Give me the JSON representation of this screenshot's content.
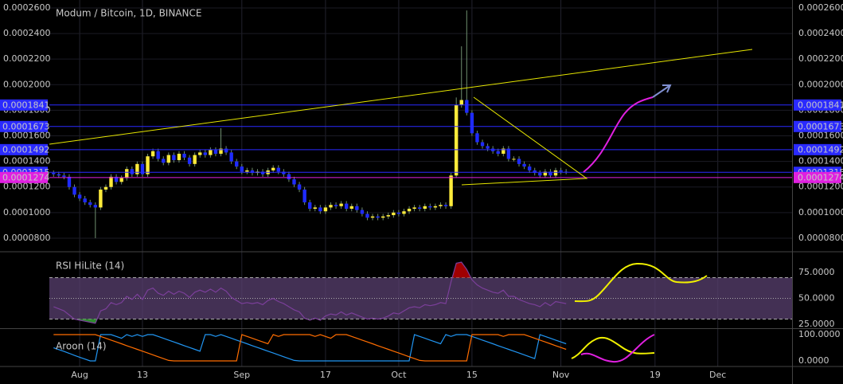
{
  "chart_data": [
    {
      "type": "candlestick",
      "title": "Modum / Bitcoin, 1D, BINANCE",
      "x": [
        -5,
        -4,
        -3,
        -2,
        -1,
        0,
        1,
        2,
        3,
        4,
        5,
        6,
        7,
        8,
        9,
        10,
        11,
        12,
        13,
        14,
        15,
        16,
        17,
        18,
        19,
        20,
        21,
        22,
        23,
        24,
        25,
        26,
        27,
        28,
        29,
        30,
        31,
        32,
        33,
        34,
        35,
        36,
        37,
        38,
        39,
        40,
        41,
        42,
        43,
        44,
        45,
        46,
        47,
        48,
        49,
        50,
        51,
        52,
        53,
        54,
        55,
        56,
        57,
        58,
        59,
        60,
        61,
        62,
        63,
        64,
        65,
        66,
        67,
        68,
        69,
        70,
        71,
        72,
        73,
        74,
        75,
        76,
        77,
        78,
        79,
        80,
        81,
        82,
        83,
        84,
        85,
        86,
        87,
        88,
        89,
        90,
        91,
        92,
        93
      ],
      "open": [
        0.000131,
        0.00013,
        0.000129,
        0.000128,
        0.00012,
        0.000114,
        0.000111,
        0.000108,
        0.000106,
        0.000104,
        0.000118,
        0.00012,
        0.000128,
        0.000124,
        0.000127,
        0.000134,
        0.00013,
        0.000138,
        0.00013,
        0.000144,
        0.000148,
        0.000142,
        0.000139,
        0.000145,
        0.000141,
        0.000146,
        0.000143,
        0.000138,
        0.000145,
        0.000147,
        0.000145,
        0.000149,
        0.000146,
        0.00015,
        0.000147,
        0.00014,
        0.000136,
        0.000132,
        0.000133,
        0.000131,
        0.000132,
        0.00013,
        0.000133,
        0.000135,
        0.000132,
        0.00013,
        0.000126,
        0.000122,
        0.000118,
        0.000108,
        0.000103,
        0.000104,
        0.000101,
        0.000104,
        0.000106,
        0.000105,
        0.000107,
        0.000103,
        0.000105,
        0.000102,
        9.9e-05,
        9.6e-05,
        9.7e-05,
        9.6e-05,
        9.7e-05,
        9.8e-05,
        0.0001,
        9.9e-05,
        0.000101,
        0.000103,
        0.000104,
        0.000103,
        0.000105,
        0.000104,
        0.000105,
        0.000106,
        0.000105,
        0.000129,
        0.000184,
        0.000188,
        0.000178,
        0.000162,
        0.000155,
        0.000152,
        0.00015,
        0.000148,
        0.000146,
        0.00015,
        0.000142,
        0.000142,
        0.000138,
        0.000136,
        0.000133,
        0.000131,
        0.000129,
        0.000132,
        0.000129,
        0.000133,
        0.000132
      ],
      "high": [
        0.000133,
        0.000132,
        0.000131,
        0.00013,
        0.000122,
        0.000116,
        0.000113,
        0.00011,
        0.000108,
        0.00012,
        0.000122,
        0.00013,
        0.00013,
        0.000129,
        0.000136,
        0.000136,
        0.00014,
        0.00014,
        0.000146,
        0.00015,
        0.00015,
        0.000144,
        0.000147,
        0.000147,
        0.000148,
        0.000148,
        0.000145,
        0.000147,
        0.000149,
        0.000149,
        0.000151,
        0.000151,
        0.000166,
        0.000152,
        0.000149,
        0.000142,
        0.000138,
        0.000135,
        0.000135,
        0.000134,
        0.000134,
        0.000135,
        0.000137,
        0.000137,
        0.000134,
        0.000132,
        0.000128,
        0.000124,
        0.00012,
        0.00011,
        0.000106,
        0.000106,
        0.000106,
        0.000108,
        0.000108,
        0.000109,
        0.000109,
        0.000107,
        0.000107,
        0.000104,
        0.000101,
        9.9e-05,
        9.9e-05,
        9.9e-05,
        0.0001,
        0.000102,
        0.000102,
        0.000103,
        0.000105,
        0.000106,
        0.000106,
        0.000107,
        0.000107,
        0.000107,
        0.000108,
        0.000108,
        0.000131,
        0.00019,
        0.00023,
        0.000258,
        0.00018,
        0.000164,
        0.000157,
        0.000154,
        0.000152,
        0.00015,
        0.000152,
        0.000152,
        0.000144,
        0.000144,
        0.00014,
        0.000138,
        0.000135,
        0.000133,
        0.000134,
        0.000134,
        0.000135,
        0.000135,
        0.000134
      ],
      "low": [
        0.000128,
        0.000127,
        0.000126,
        0.000118,
        0.000112,
        0.000109,
        0.000106,
        0.000104,
        8e-05,
        0.000102,
        0.000116,
        0.000118,
        0.000122,
        0.000122,
        0.000125,
        0.000128,
        0.000128,
        0.000128,
        0.000128,
        0.000142,
        0.00014,
        0.000137,
        0.000137,
        0.000139,
        0.000139,
        0.000141,
        0.000136,
        0.000136,
        0.000143,
        0.000143,
        0.000143,
        0.000144,
        0.000144,
        0.000145,
        0.000138,
        0.000134,
        0.00013,
        0.00013,
        0.000129,
        0.000129,
        0.000128,
        0.000128,
        0.000131,
        0.00013,
        0.000128,
        0.000124,
        0.00012,
        0.000116,
        0.000106,
        0.000101,
        0.000101,
        9.9e-05,
        9.9e-05,
        0.000102,
        0.000103,
        0.000103,
        0.000101,
        0.000101,
        0.0001,
        9.7e-05,
        9.4e-05,
        9.4e-05,
        9.4e-05,
        9.4e-05,
        9.5e-05,
        9.6e-05,
        9.7e-05,
        9.7e-05,
        9.9e-05,
        0.000101,
        0.000101,
        0.000101,
        0.000102,
        0.000102,
        0.000103,
        0.000103,
        0.000103,
        0.000127,
        0.000182,
        0.000176,
        0.00016,
        0.000153,
        0.00015,
        0.000148,
        0.000146,
        0.000144,
        0.000144,
        0.00014,
        0.00014,
        0.000136,
        0.000134,
        0.000131,
        0.000129,
        0.000127,
        0.000127,
        0.000127,
        0.000127,
        0.00013,
        0.00013
      ],
      "close": [
        0.00013,
        0.000129,
        0.000128,
        0.00012,
        0.000114,
        0.000111,
        0.000108,
        0.000106,
        0.000104,
        0.000118,
        0.00012,
        0.000128,
        0.000124,
        0.000127,
        0.000134,
        0.00013,
        0.000138,
        0.00013,
        0.000144,
        0.000148,
        0.000142,
        0.000139,
        0.000145,
        0.000141,
        0.000146,
        0.000143,
        0.000138,
        0.000145,
        0.000147,
        0.000145,
        0.000149,
        0.000146,
        0.00015,
        0.000147,
        0.00014,
        0.000136,
        0.000132,
        0.000133,
        0.000131,
        0.000132,
        0.00013,
        0.000133,
        0.000135,
        0.000132,
        0.00013,
        0.000126,
        0.000122,
        0.000118,
        0.000108,
        0.000103,
        0.000104,
        0.000101,
        0.000104,
        0.000106,
        0.000105,
        0.000107,
        0.000103,
        0.000105,
        0.000102,
        9.9e-05,
        9.6e-05,
        9.7e-05,
        9.6e-05,
        9.7e-05,
        9.8e-05,
        0.0001,
        9.9e-05,
        0.000101,
        0.000103,
        0.000104,
        0.000103,
        0.000105,
        0.000104,
        0.000105,
        0.000106,
        0.000105,
        0.000129,
        0.000184,
        0.000188,
        0.000178,
        0.000162,
        0.000155,
        0.000152,
        0.00015,
        0.000148,
        0.000146,
        0.00015,
        0.000142,
        0.000142,
        0.000138,
        0.000136,
        0.000133,
        0.000131,
        0.000129,
        0.000132,
        0.000129,
        0.000133,
        0.000132,
        0.0001315
      ],
      "up_color": "#ffeb3b",
      "down_color": "#1f2bff",
      "wick_color": "#6f8f6f",
      "xlim": [
        -5.8,
        136.2
      ],
      "xticks": [
        {
          "value": 0,
          "label": "Aug"
        },
        {
          "value": 12,
          "label": "13"
        },
        {
          "value": 31,
          "label": "Sep"
        },
        {
          "value": 47,
          "label": "17"
        },
        {
          "value": 61,
          "label": "Oct"
        },
        {
          "value": 75,
          "label": "15"
        },
        {
          "value": 92,
          "label": "Nov"
        },
        {
          "value": 110,
          "label": "19"
        },
        {
          "value": 122,
          "label": "Dec"
        }
      ],
      "ylim": [
        7e-05,
        0.0002662
      ],
      "yticks": [
        {
          "value": 8e-05,
          "label": "0.0000800"
        },
        {
          "value": 0.0001,
          "label": "0.0001000"
        },
        {
          "value": 0.00012,
          "label": "0.0001200"
        },
        {
          "value": 0.00014,
          "label": "0.0001400"
        },
        {
          "value": 0.00016,
          "label": "0.0001600"
        },
        {
          "value": 0.00018,
          "label": "0.0001800"
        },
        {
          "value": 0.0002,
          "label": "0.0002000"
        },
        {
          "value": 0.00022,
          "label": "0.0002200"
        },
        {
          "value": 0.00024,
          "label": "0.0002400"
        },
        {
          "value": 0.00026,
          "label": "0.0002600"
        }
      ],
      "levels": [
        {
          "value": 0.0001841,
          "color": "#2a2aff"
        },
        {
          "value": 0.0001673,
          "color": "#2a2aff"
        },
        {
          "value": 0.0001492,
          "color": "#2a2aff"
        },
        {
          "value": 0.0001315,
          "color": "#2a2aff"
        },
        {
          "value": 0.0001274,
          "color": "#e020e0"
        }
      ],
      "grid": true
    },
    {
      "type": "line",
      "title": "RSI HiLite (14)",
      "series": [
        {
          "color": "#7b3f9a",
          "values": [
            42,
            40,
            38,
            34,
            30,
            29,
            28,
            27,
            26,
            38,
            40,
            46,
            44,
            46,
            52,
            49,
            54,
            49,
            58,
            60,
            55,
            53,
            57,
            54,
            57,
            55,
            51,
            56,
            58,
            56,
            59,
            56,
            60,
            57,
            51,
            48,
            45,
            46,
            45,
            46,
            44,
            48,
            50,
            47,
            45,
            42,
            39,
            37,
            31,
            29,
            31,
            29,
            33,
            35,
            34,
            37,
            34,
            36,
            34,
            32,
            30,
            31,
            30,
            31,
            33,
            36,
            35,
            38,
            41,
            42,
            41,
            44,
            43,
            44,
            46,
            45,
            66,
            84,
            85,
            78,
            68,
            63,
            60,
            58,
            56,
            55,
            58,
            52,
            52,
            49,
            47,
            45,
            44,
            42,
            46,
            43,
            47,
            46,
            45
          ]
        }
      ],
      "bands": [
        30,
        50,
        70
      ],
      "band_color": "#5a4070",
      "high_fill": "#a00000",
      "low_fill": "#2e8b2e",
      "ylim": [
        21.2,
        93.5
      ],
      "yticks": [
        {
          "value": 25,
          "label": "25.0000"
        },
        {
          "value": 50,
          "label": "50.0000"
        },
        {
          "value": 75,
          "label": "75.0000"
        }
      ]
    },
    {
      "type": "line",
      "title": "Aroon (14)",
      "series": [
        {
          "color": "#2196f3",
          "values": [
            50,
            43,
            36,
            29,
            21,
            14,
            7,
            0,
            0,
            100,
            100,
            100,
            93,
            86,
            100,
            93,
            100,
            93,
            100,
            100,
            93,
            86,
            79,
            72,
            65,
            58,
            51,
            44,
            37,
            100,
            100,
            93,
            100,
            93,
            86,
            79,
            72,
            65,
            58,
            51,
            44,
            37,
            30,
            23,
            16,
            9,
            2,
            0,
            0,
            0,
            0,
            0,
            0,
            0,
            0,
            0,
            0,
            0,
            0,
            0,
            0,
            0,
            0,
            0,
            0,
            0,
            0,
            0,
            0,
            100,
            93,
            86,
            79,
            72,
            65,
            100,
            93,
            100,
            100,
            100,
            93,
            86,
            79,
            72,
            65,
            58,
            51,
            44,
            37,
            30,
            23,
            16,
            9,
            100,
            93,
            86,
            79,
            72,
            65
          ]
        },
        {
          "color": "#ff6d00",
          "values": [
            100,
            100,
            100,
            100,
            100,
            100,
            100,
            100,
            100,
            93,
            86,
            79,
            72,
            65,
            58,
            51,
            44,
            37,
            30,
            23,
            16,
            9,
            2,
            0,
            0,
            0,
            0,
            0,
            0,
            0,
            0,
            0,
            0,
            0,
            0,
            0,
            100,
            93,
            86,
            79,
            72,
            65,
            100,
            93,
            100,
            100,
            100,
            100,
            100,
            100,
            93,
            100,
            93,
            86,
            100,
            100,
            100,
            93,
            86,
            79,
            72,
            65,
            58,
            51,
            44,
            37,
            30,
            23,
            16,
            9,
            2,
            0,
            0,
            0,
            0,
            0,
            0,
            0,
            0,
            0,
            100,
            100,
            100,
            100,
            100,
            100,
            93,
            100,
            100,
            100,
            100,
            93,
            86,
            79,
            72,
            65,
            58,
            51,
            44
          ]
        }
      ],
      "ylim": [
        -21,
        121
      ],
      "yticks": [
        {
          "value": 0,
          "label": "0.0000"
        },
        {
          "value": 100,
          "label": "100.0000"
        }
      ]
    }
  ]
}
